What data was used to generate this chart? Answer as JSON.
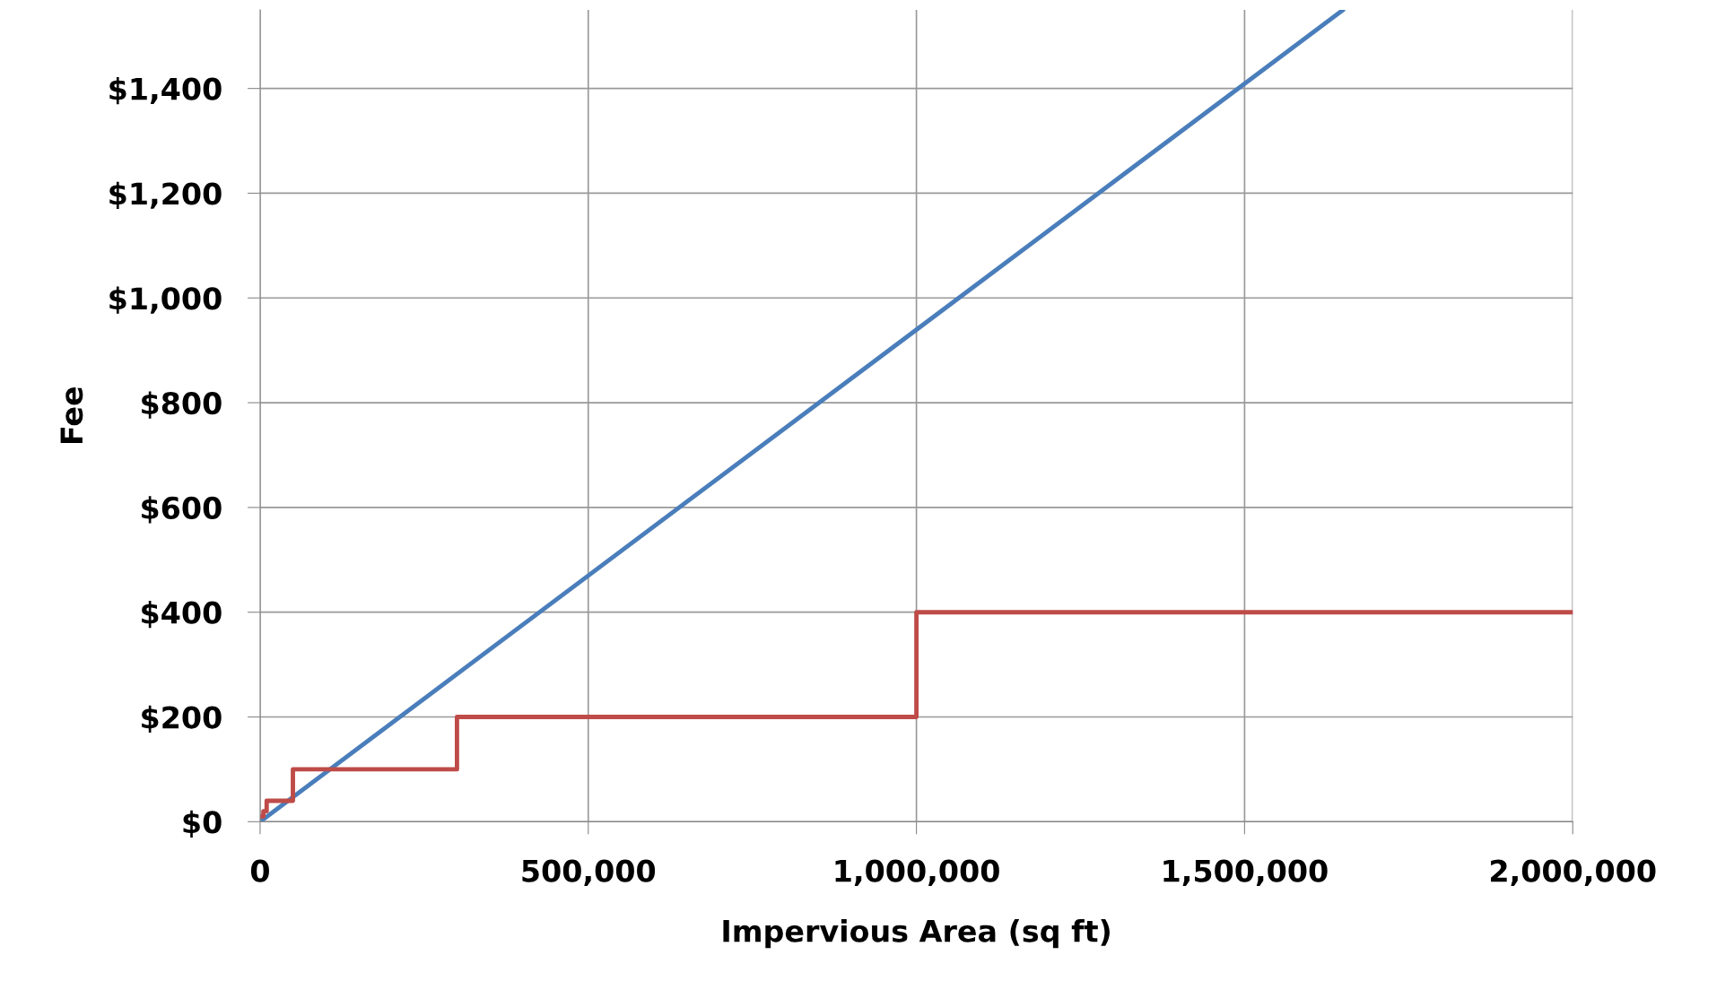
{
  "chart_data": {
    "type": "line",
    "xlabel": "Impervious Area (sq ft)",
    "ylabel": "Fee",
    "series": [
      {
        "color": "#4a7ebb",
        "x": [
          0,
          1650000
        ],
        "values": [
          0,
          1550
        ]
      },
      {
        "type": "step",
        "color": "#be4b48",
        "x": [
          0,
          5000,
          10000,
          50000,
          300000,
          1000000,
          2000000
        ],
        "values": [
          10,
          20,
          40,
          100,
          200,
          400,
          400
        ]
      }
    ],
    "xlim": [
      0,
      2000000
    ],
    "ylim": [
      0,
      1550
    ],
    "xticks": [
      0,
      {
        "value": 500000,
        "label": "500,000"
      },
      {
        "value": 1000000,
        "label": "1,000,000"
      },
      {
        "value": 1500000,
        "label": "1,500,000"
      },
      {
        "value": 2000000,
        "label": "2,000,000"
      }
    ],
    "yticks": [
      {
        "value": 0,
        "label": "$0"
      },
      {
        "value": 200,
        "label": "$200"
      },
      {
        "value": 400,
        "label": "$400"
      },
      {
        "value": 600,
        "label": "$600"
      },
      {
        "value": 800,
        "label": "$800"
      },
      {
        "value": 1000,
        "label": "$1,000"
      },
      {
        "value": 1200,
        "label": "$1,200"
      },
      {
        "value": 1400,
        "label": "$1,400"
      }
    ],
    "grid": true,
    "legend": false
  }
}
